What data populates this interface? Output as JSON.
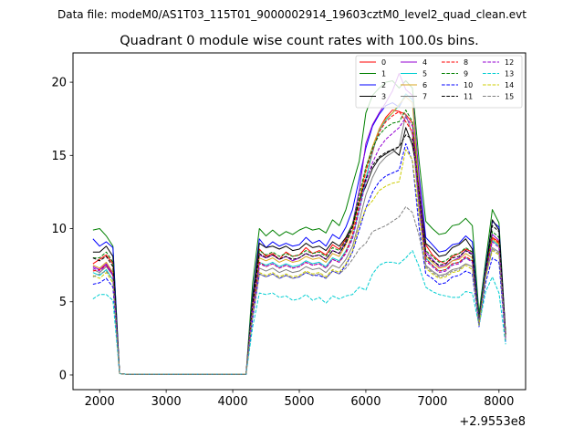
{
  "figure": {
    "suptitle": "Data file: modeM0/AS1T03_115T01_9000002914_19603cztM0_level2_quad_clean.evt"
  },
  "chart_data": {
    "type": "line",
    "title": "Quadrant 0 module wise count rates with 100.0s bins.",
    "xlabel": "",
    "ylabel": "",
    "x_offset_label": "+2.9553e8",
    "xlim": [
      1600,
      8400
    ],
    "ylim": [
      -1.0,
      22.0
    ],
    "x_ticks": [
      2000,
      3000,
      4000,
      5000,
      6000,
      7000,
      8000
    ],
    "x_tick_labels": [
      "2000",
      "3000",
      "4000",
      "5000",
      "6000",
      "7000",
      "8000"
    ],
    "y_ticks": [
      0,
      5,
      10,
      15,
      20
    ],
    "y_tick_labels": [
      "0",
      "5",
      "10",
      "15",
      "20"
    ],
    "legend_position": "top-right",
    "legend_columns": 4,
    "x": [
      1900,
      2000,
      2100,
      2200,
      2300,
      2400,
      2500,
      2600,
      2700,
      2800,
      2900,
      3000,
      3100,
      3200,
      3300,
      3400,
      3500,
      3600,
      3700,
      3800,
      3900,
      4000,
      4100,
      4200,
      4300,
      4400,
      4500,
      4600,
      4700,
      4800,
      4900,
      5000,
      5100,
      5200,
      5300,
      5400,
      5500,
      5600,
      5700,
      5800,
      5900,
      6000,
      6100,
      6200,
      6300,
      6400,
      6500,
      6600,
      6700,
      6800,
      6900,
      7000,
      7100,
      7200,
      7300,
      7400,
      7500,
      7600,
      7700,
      7800,
      7900,
      8000,
      8100
    ],
    "series": [
      {
        "name": "0",
        "color": "#ff0000",
        "dash": "solid",
        "values": [
          7.6,
          7.9,
          8.2,
          7.6,
          0.1,
          0.05,
          0.05,
          0.05,
          0.05,
          0.05,
          0.05,
          0.05,
          0.05,
          0.05,
          0.05,
          0.05,
          0.05,
          0.05,
          0.05,
          0.05,
          0.05,
          0.05,
          0.05,
          0.05,
          4.5,
          8.6,
          8.1,
          8.3,
          7.9,
          8.4,
          8.1,
          8.2,
          8.7,
          8.3,
          8.5,
          8.2,
          8.9,
          8.6,
          9.3,
          10.2,
          11.9,
          13.4,
          15.2,
          16.8,
          17.6,
          18.1,
          18.0,
          17.8,
          17.2,
          12.8,
          8.9,
          8.2,
          7.8,
          7.6,
          8.1,
          8.3,
          8.6,
          8.4,
          4.1,
          7.3,
          9.4,
          9.1,
          2.8
        ]
      },
      {
        "name": "1",
        "color": "#008000",
        "dash": "solid",
        "values": [
          9.9,
          10.0,
          9.5,
          8.8,
          0.1,
          0.05,
          0.05,
          0.05,
          0.05,
          0.05,
          0.05,
          0.05,
          0.05,
          0.05,
          0.05,
          0.05,
          0.05,
          0.05,
          0.05,
          0.05,
          0.05,
          0.05,
          0.05,
          0.05,
          6.3,
          10.0,
          9.5,
          9.9,
          9.5,
          9.8,
          9.6,
          9.9,
          10.1,
          9.9,
          10.0,
          9.7,
          10.6,
          10.2,
          11.3,
          13.0,
          14.6,
          17.9,
          19.1,
          19.6,
          20.0,
          20.1,
          19.6,
          20.1,
          19.6,
          14.6,
          10.5,
          10.0,
          9.6,
          9.7,
          10.2,
          10.3,
          10.7,
          10.2,
          4.2,
          7.8,
          11.3,
          10.4,
          2.8
        ]
      },
      {
        "name": "2",
        "color": "#0000ff",
        "dash": "solid",
        "values": [
          9.3,
          8.8,
          9.1,
          8.7,
          0.1,
          0.05,
          0.05,
          0.05,
          0.05,
          0.05,
          0.05,
          0.05,
          0.05,
          0.05,
          0.05,
          0.05,
          0.05,
          0.05,
          0.05,
          0.05,
          0.05,
          0.05,
          0.05,
          0.05,
          5.5,
          9.3,
          8.7,
          9.1,
          8.8,
          9.0,
          8.8,
          8.9,
          9.4,
          9.0,
          9.2,
          8.8,
          9.6,
          9.3,
          10.1,
          11.3,
          13.4,
          15.5,
          17.0,
          17.8,
          18.4,
          18.6,
          18.3,
          19.2,
          18.8,
          13.6,
          9.4,
          8.9,
          8.4,
          8.5,
          8.9,
          9.0,
          9.5,
          9.1,
          3.8,
          7.4,
          10.5,
          10.1,
          2.7
        ]
      },
      {
        "name": "3",
        "color": "#000000",
        "dash": "solid",
        "values": [
          8.4,
          8.4,
          8.8,
          8.1,
          0.1,
          0.05,
          0.05,
          0.05,
          0.05,
          0.05,
          0.05,
          0.05,
          0.05,
          0.05,
          0.05,
          0.05,
          0.05,
          0.05,
          0.05,
          0.05,
          0.05,
          0.05,
          0.05,
          0.05,
          5.3,
          9.0,
          8.7,
          8.8,
          8.6,
          8.8,
          8.5,
          8.6,
          9.0,
          8.7,
          8.8,
          8.5,
          9.1,
          8.8,
          9.4,
          10.3,
          11.9,
          12.9,
          14.1,
          14.8,
          15.1,
          15.4,
          15.0,
          16.9,
          15.7,
          12.9,
          9.0,
          8.6,
          8.1,
          8.2,
          8.7,
          8.9,
          9.3,
          8.6,
          3.6,
          7.1,
          10.6,
          9.9,
          2.8
        ]
      },
      {
        "name": "4",
        "color": "#9400d3",
        "dash": "solid",
        "values": [
          7.4,
          7.2,
          7.6,
          6.9,
          0.1,
          0.05,
          0.05,
          0.05,
          0.05,
          0.05,
          0.05,
          0.05,
          0.05,
          0.05,
          0.05,
          0.05,
          0.05,
          0.05,
          0.05,
          0.05,
          0.05,
          0.05,
          0.05,
          0.05,
          5.0,
          8.2,
          8.0,
          8.2,
          7.9,
          8.1,
          7.8,
          8.0,
          8.3,
          8.1,
          8.2,
          7.9,
          8.5,
          8.3,
          9.1,
          10.3,
          12.6,
          15.8,
          17.1,
          17.9,
          18.6,
          19.4,
          20.6,
          19.5,
          19.1,
          13.3,
          8.4,
          7.9,
          7.4,
          7.5,
          7.8,
          8.0,
          8.5,
          8.3,
          3.7,
          7.2,
          9.6,
          9.2,
          2.6
        ]
      },
      {
        "name": "5",
        "color": "#00ced1",
        "dash": "solid",
        "values": [
          7.0,
          6.8,
          7.2,
          6.5,
          0.1,
          0.05,
          0.05,
          0.05,
          0.05,
          0.05,
          0.05,
          0.05,
          0.05,
          0.05,
          0.05,
          0.05,
          0.05,
          0.05,
          0.05,
          0.05,
          0.05,
          0.05,
          0.05,
          0.05,
          4.6,
          7.7,
          7.5,
          7.7,
          7.4,
          7.6,
          7.4,
          7.5,
          7.8,
          7.6,
          7.7,
          7.4,
          8.0,
          7.8,
          8.5,
          9.4,
          11.3,
          13.4,
          15.3,
          16.7,
          17.4,
          17.9,
          18.4,
          19.2,
          18.8,
          12.6,
          8.0,
          7.5,
          7.1,
          7.2,
          7.6,
          7.7,
          8.0,
          7.8,
          3.5,
          6.9,
          9.2,
          8.8,
          2.5
        ]
      },
      {
        "name": "6",
        "color": "#daa520",
        "dash": "solid",
        "values": [
          7.5,
          7.3,
          7.7,
          7.0,
          0.1,
          0.05,
          0.05,
          0.05,
          0.05,
          0.05,
          0.05,
          0.05,
          0.05,
          0.05,
          0.05,
          0.05,
          0.05,
          0.05,
          0.05,
          0.05,
          0.05,
          0.05,
          0.05,
          0.05,
          4.9,
          8.0,
          7.8,
          8.0,
          7.7,
          7.9,
          7.7,
          7.8,
          8.1,
          7.9,
          8.0,
          7.7,
          8.3,
          8.1,
          8.9,
          9.9,
          11.9,
          14.1,
          15.6,
          16.8,
          17.5,
          17.9,
          18.5,
          19.0,
          18.6,
          12.7,
          8.1,
          7.7,
          7.3,
          7.4,
          7.8,
          7.9,
          8.3,
          8.0,
          3.6,
          7.0,
          9.3,
          8.9,
          2.6
        ]
      },
      {
        "name": "7",
        "color": "#808080",
        "dash": "solid",
        "values": [
          7.2,
          7.0,
          7.4,
          6.8,
          0.1,
          0.05,
          0.05,
          0.05,
          0.05,
          0.05,
          0.05,
          0.05,
          0.05,
          0.05,
          0.05,
          0.05,
          0.05,
          0.05,
          0.05,
          0.05,
          0.05,
          0.05,
          0.05,
          0.05,
          4.4,
          7.3,
          7.1,
          7.3,
          7.0,
          7.2,
          7.0,
          7.1,
          7.4,
          7.2,
          7.3,
          7.0,
          7.5,
          7.3,
          7.9,
          8.8,
          10.5,
          12.3,
          13.5,
          14.4,
          14.9,
          15.2,
          15.6,
          17.8,
          16.4,
          11.3,
          7.5,
          7.1,
          6.8,
          6.9,
          7.2,
          7.3,
          7.6,
          7.4,
          3.4,
          6.7,
          8.7,
          8.4,
          2.4
        ]
      },
      {
        "name": "8",
        "color": "#ff0000",
        "dash": "dashed",
        "values": [
          7.1,
          7.2,
          7.5,
          6.8,
          0.1,
          0.05,
          0.05,
          0.05,
          0.05,
          0.05,
          0.05,
          0.05,
          0.05,
          0.05,
          0.05,
          0.05,
          0.05,
          0.05,
          0.05,
          0.05,
          0.05,
          0.05,
          0.05,
          0.05,
          4.3,
          7.7,
          7.4,
          7.6,
          7.3,
          7.5,
          7.3,
          7.4,
          7.7,
          7.5,
          7.6,
          7.3,
          7.9,
          7.7,
          8.4,
          9.6,
          11.6,
          13.9,
          15.4,
          16.6,
          17.3,
          17.7,
          18.0,
          17.3,
          16.6,
          12.1,
          7.9,
          7.5,
          7.1,
          7.2,
          7.6,
          7.7,
          8.1,
          7.8,
          3.6,
          7.0,
          9.4,
          9.0,
          2.6
        ]
      },
      {
        "name": "9",
        "color": "#008000",
        "dash": "dashed",
        "values": [
          8.0,
          8.0,
          8.4,
          7.7,
          0.1,
          0.05,
          0.05,
          0.05,
          0.05,
          0.05,
          0.05,
          0.05,
          0.05,
          0.05,
          0.05,
          0.05,
          0.05,
          0.05,
          0.05,
          0.05,
          0.05,
          0.05,
          0.05,
          0.05,
          4.9,
          8.5,
          8.2,
          8.4,
          8.1,
          8.3,
          8.1,
          8.2,
          8.5,
          8.3,
          8.4,
          8.1,
          8.7,
          8.5,
          9.2,
          10.3,
          12.3,
          14.2,
          15.5,
          16.4,
          16.9,
          17.2,
          17.3,
          18.1,
          17.3,
          12.3,
          8.5,
          8.1,
          7.7,
          7.8,
          8.2,
          8.3,
          8.7,
          8.4,
          3.7,
          7.1,
          9.8,
          9.4,
          2.7
        ]
      },
      {
        "name": "10",
        "color": "#0000ff",
        "dash": "dashed",
        "values": [
          6.2,
          6.3,
          6.6,
          6.0,
          0.1,
          0.05,
          0.05,
          0.05,
          0.05,
          0.05,
          0.05,
          0.05,
          0.05,
          0.05,
          0.05,
          0.05,
          0.05,
          0.05,
          0.05,
          0.05,
          0.05,
          0.05,
          0.05,
          0.05,
          3.9,
          6.9,
          6.7,
          6.9,
          6.6,
          6.8,
          6.6,
          6.7,
          7.0,
          6.8,
          6.8,
          6.6,
          7.1,
          6.9,
          7.5,
          8.4,
          9.9,
          11.4,
          12.5,
          13.2,
          13.6,
          13.8,
          14.0,
          15.8,
          14.6,
          10.1,
          6.9,
          6.6,
          6.2,
          6.3,
          6.7,
          6.8,
          7.1,
          6.9,
          3.3,
          6.3,
          8.0,
          7.7,
          2.2
        ]
      },
      {
        "name": "11",
        "color": "#000000",
        "dash": "dashed",
        "values": [
          8.0,
          7.8,
          8.1,
          7.4,
          0.1,
          0.05,
          0.05,
          0.05,
          0.05,
          0.05,
          0.05,
          0.05,
          0.05,
          0.05,
          0.05,
          0.05,
          0.05,
          0.05,
          0.05,
          0.05,
          0.05,
          0.05,
          0.05,
          0.05,
          4.8,
          8.3,
          8.0,
          8.2,
          7.9,
          8.1,
          7.9,
          8.0,
          8.3,
          8.1,
          8.2,
          7.9,
          8.5,
          8.3,
          9.0,
          10.1,
          11.9,
          13.4,
          14.3,
          14.9,
          15.2,
          15.4,
          15.6,
          16.4,
          16.1,
          12.5,
          8.2,
          7.8,
          7.5,
          7.6,
          8.0,
          8.1,
          8.5,
          8.2,
          3.7,
          7.2,
          10.2,
          9.8,
          2.7
        ]
      },
      {
        "name": "12",
        "color": "#9400d3",
        "dash": "dashed",
        "values": [
          7.3,
          7.1,
          7.5,
          6.8,
          0.1,
          0.05,
          0.05,
          0.05,
          0.05,
          0.05,
          0.05,
          0.05,
          0.05,
          0.05,
          0.05,
          0.05,
          0.05,
          0.05,
          0.05,
          0.05,
          0.05,
          0.05,
          0.05,
          0.05,
          4.5,
          7.6,
          7.4,
          7.6,
          7.3,
          7.5,
          7.3,
          7.4,
          7.7,
          7.5,
          7.6,
          7.3,
          7.9,
          7.7,
          8.3,
          9.3,
          11.2,
          13.2,
          14.5,
          15.5,
          16.1,
          16.5,
          16.9,
          17.6,
          17.0,
          11.8,
          7.8,
          7.4,
          7.0,
          7.1,
          7.5,
          7.6,
          8.0,
          7.7,
          3.5,
          6.9,
          9.1,
          8.7,
          2.5
        ]
      },
      {
        "name": "13",
        "color": "#00ced1",
        "dash": "dashed",
        "values": [
          5.2,
          5.5,
          5.5,
          5.1,
          0.1,
          0.05,
          0.05,
          0.05,
          0.05,
          0.05,
          0.05,
          0.05,
          0.05,
          0.05,
          0.05,
          0.05,
          0.05,
          0.05,
          0.05,
          0.05,
          0.05,
          0.05,
          0.05,
          0.05,
          3.3,
          5.6,
          5.5,
          5.6,
          5.3,
          5.4,
          5.1,
          5.2,
          5.5,
          5.1,
          5.3,
          4.9,
          5.4,
          5.2,
          5.4,
          5.5,
          6.0,
          5.8,
          6.9,
          7.5,
          7.7,
          7.7,
          7.6,
          8.0,
          8.5,
          7.4,
          6.0,
          5.7,
          5.5,
          5.4,
          5.3,
          5.3,
          5.7,
          5.6,
          3.4,
          5.7,
          6.7,
          5.6,
          2.1
        ]
      },
      {
        "name": "14",
        "color": "#cccc00",
        "dash": "dashed",
        "values": [
          6.8,
          6.6,
          7.0,
          6.3,
          0.1,
          0.05,
          0.05,
          0.05,
          0.05,
          0.05,
          0.05,
          0.05,
          0.05,
          0.05,
          0.05,
          0.05,
          0.05,
          0.05,
          0.05,
          0.05,
          0.05,
          0.05,
          0.05,
          0.05,
          4.2,
          7.0,
          6.8,
          7.0,
          6.7,
          6.9,
          6.7,
          6.8,
          7.1,
          6.9,
          7.0,
          6.7,
          7.2,
          7.0,
          7.6,
          8.5,
          10.2,
          11.4,
          11.9,
          12.6,
          12.9,
          13.1,
          13.2,
          15.4,
          14.7,
          10.9,
          7.3,
          6.9,
          6.6,
          6.7,
          7.0,
          7.1,
          7.5,
          7.2,
          3.4,
          6.7,
          8.5,
          8.2,
          2.4
        ]
      },
      {
        "name": "15",
        "color": "#808080",
        "dash": "dashed",
        "values": [
          6.7,
          6.9,
          7.1,
          6.5,
          0.1,
          0.05,
          0.05,
          0.05,
          0.05,
          0.05,
          0.05,
          0.05,
          0.05,
          0.05,
          0.05,
          0.05,
          0.05,
          0.05,
          0.05,
          0.05,
          0.05,
          0.05,
          0.05,
          0.05,
          4.0,
          6.9,
          6.7,
          6.9,
          6.6,
          6.8,
          6.6,
          6.7,
          7.0,
          6.8,
          6.9,
          6.6,
          7.1,
          6.9,
          7.3,
          7.9,
          8.6,
          9.0,
          9.8,
          10.0,
          10.2,
          10.5,
          10.8,
          11.5,
          11.1,
          9.5,
          7.4,
          7.0,
          6.7,
          6.8,
          7.1,
          7.2,
          7.6,
          7.4,
          3.5,
          6.8,
          8.6,
          8.3,
          2.4
        ]
      }
    ]
  }
}
